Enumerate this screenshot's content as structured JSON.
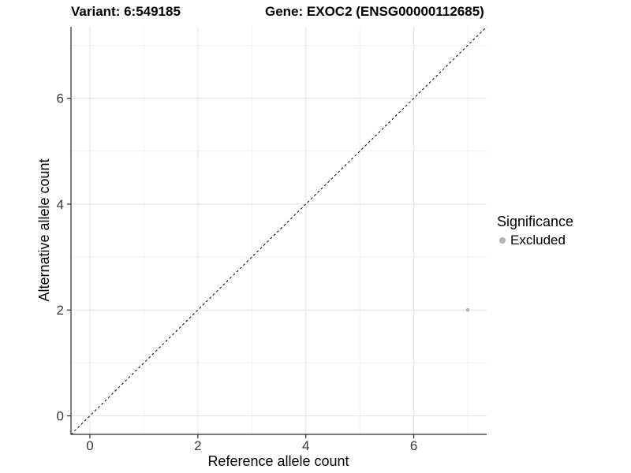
{
  "chart_data": {
    "type": "scatter",
    "title_left": "Variant: 6:549185",
    "title_right": "Gene: EXOC2 (ENSG00000112685)",
    "xlabel": "Reference allele count",
    "ylabel": "Alternative allele count",
    "xlim": [
      -0.35,
      7.35
    ],
    "ylim": [
      -0.35,
      7.35
    ],
    "x_breaks": [
      0,
      2,
      4,
      6
    ],
    "y_breaks": [
      0,
      2,
      4,
      6
    ],
    "x_minor_breaks": [
      1,
      3,
      5,
      7
    ],
    "y_minor_breaks": [
      1,
      3,
      5,
      7
    ],
    "grid": true,
    "identity_line": {
      "style": "dashed",
      "color": "#000000",
      "from": [
        -0.35,
        -0.35
      ],
      "to": [
        7.35,
        7.35
      ]
    },
    "series": [
      {
        "name": "Excluded",
        "points": [
          {
            "x": 7,
            "y": 2
          }
        ],
        "color": "#b4b4b4"
      }
    ],
    "legend": {
      "title": "Significance",
      "position": "right",
      "entries": [
        {
          "label": "Excluded",
          "color": "#b4b4b4"
        }
      ]
    },
    "colors": {
      "background": "#ffffff",
      "axis_line": "#2b2b2b",
      "tick_text": "#383838",
      "grid_major": "#e4e4e4",
      "grid_minor": "#f1f1f1",
      "point": "#b4b4b4",
      "diagonal": "#000000"
    }
  }
}
